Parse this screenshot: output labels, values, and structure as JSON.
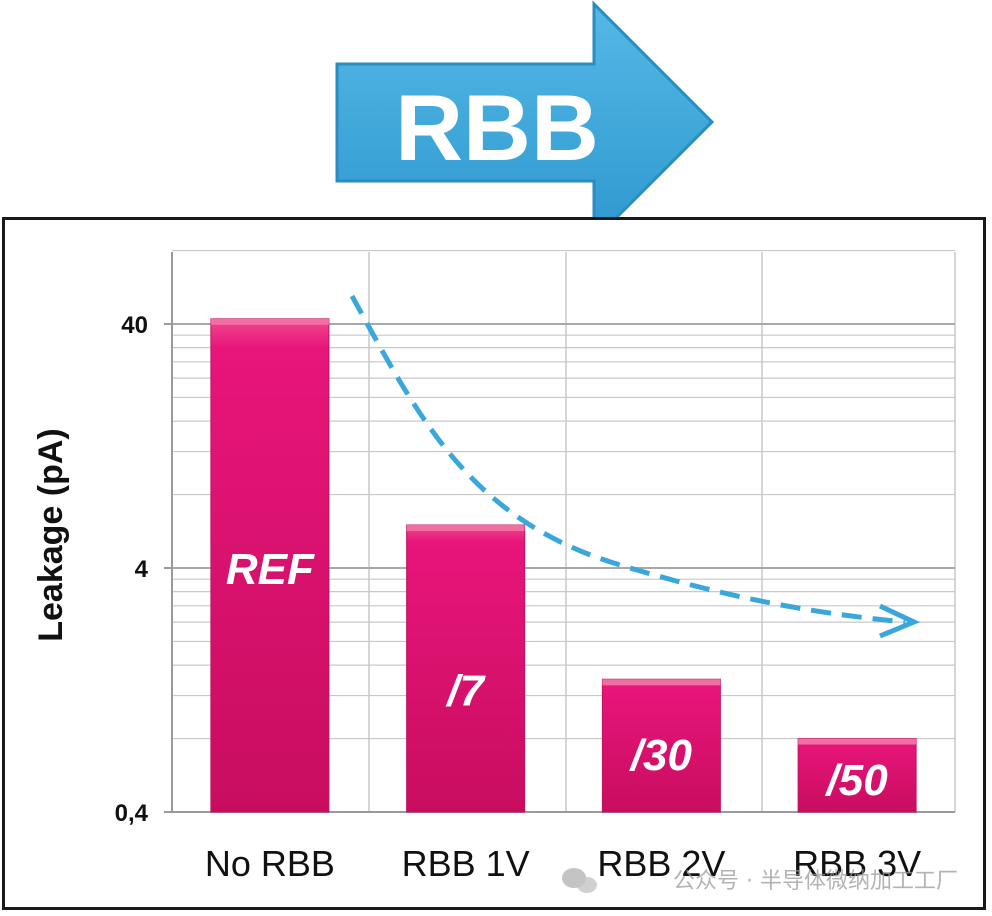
{
  "banner": {
    "label": "RBB",
    "arrow_color": "#3aa7dc",
    "text_color": "#ffffff"
  },
  "watermark": "公众号 · 半导体微纳加工工厂",
  "colors": {
    "bar": "#e0106a",
    "bar_light": "#f05093",
    "trend_arrow": "#3aa7dc",
    "grid": "#c8c8c8"
  },
  "chart_data": {
    "type": "bar",
    "title": "",
    "xlabel": "",
    "ylabel": "Leakage (pA)",
    "yscale": "log",
    "ylim": [
      0.4,
      120
    ],
    "yticks": [
      {
        "value": 0.4,
        "label": "0,4"
      },
      {
        "value": 4,
        "label": "4"
      },
      {
        "value": 40,
        "label": "40"
      }
    ],
    "categories": [
      "No RBB",
      "RBB 1V",
      "RBB 2V",
      "RBB 3V"
    ],
    "values": [
      42,
      6.0,
      1.4,
      0.8
    ],
    "bar_labels": [
      "REF",
      "/7",
      "/30",
      "/50"
    ],
    "grid": true,
    "annotations": [
      {
        "type": "dashed-curved-arrow",
        "meaning": "leakage decreases with RBB"
      }
    ]
  }
}
